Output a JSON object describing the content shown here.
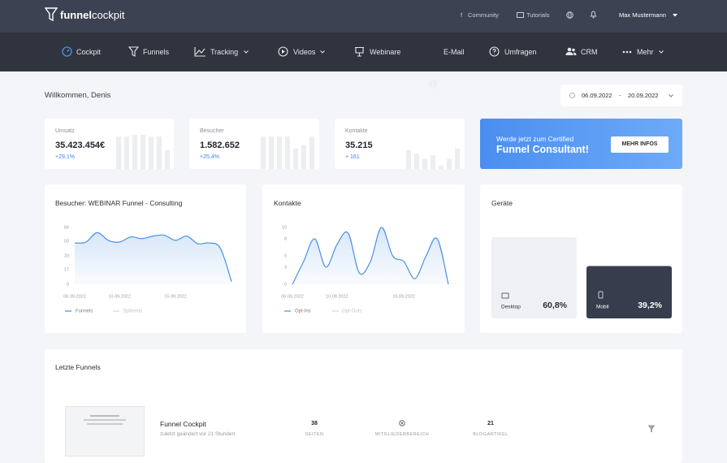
{
  "header": {
    "logo_bold": "funnel",
    "logo_light": "cockpit",
    "links": [
      "Community",
      "Tutorials"
    ],
    "user": "Max Mustermann"
  },
  "nav": [
    "Cockpit",
    "Funnels",
    "Tracking",
    "Videos",
    "Webinare",
    "E-Mail",
    "Umfragen",
    "CRM",
    "Mehr"
  ],
  "welcome": "Willkommen, Denis",
  "date_range": {
    "from": "06.09.2022",
    "separator": "-",
    "to": "20.09.2022"
  },
  "stats": [
    {
      "label": "Umsatz",
      "value": "35.423.454€",
      "change": "+29,1%",
      "sparkline": [
        95,
        95,
        100,
        100,
        95,
        95,
        55
      ]
    },
    {
      "label": "Besucher",
      "value": "1.582.652",
      "change": "+25,4%",
      "sparkline": [
        95,
        95,
        95,
        95,
        60,
        70,
        95
      ]
    },
    {
      "label": "Kontakte",
      "value": "35.215",
      "change": "+ 161",
      "sparkline": [
        55,
        45,
        30,
        40,
        10,
        30,
        60
      ]
    }
  ],
  "promo": {
    "line1": "Werde jetzt zum Certified",
    "line2": "Funnel Consultant!",
    "button": "MEHR INFOS"
  },
  "chart_data": [
    {
      "type": "line",
      "title": "Besucher: WEBINAR Funnel - Consulting",
      "categories": [
        "06.09.2022",
        null,
        null,
        null,
        "10.09.2022",
        null,
        null,
        null,
        null,
        "15.09.2022",
        null,
        null,
        null,
        null,
        null
      ],
      "series": [
        {
          "name": "Funnels",
          "color": "#4a90e2",
          "values": [
            48,
            49,
            60,
            51,
            49,
            55,
            53,
            56,
            57,
            51,
            56,
            47,
            48,
            42,
            3
          ]
        }
      ],
      "inactive_series": [
        {
          "name": "Splittests",
          "color": "#d3d6dc"
        }
      ],
      "ylim": [
        0,
        66
      ],
      "yticks": [
        0,
        17,
        33,
        50,
        66
      ]
    },
    {
      "type": "line",
      "title": "Kontakte",
      "categories": [
        "06.09.2022",
        null,
        null,
        null,
        "10.09.2022",
        null,
        null,
        null,
        null,
        null,
        "16.09.2022",
        null,
        null,
        null,
        null
      ],
      "series": [
        {
          "name": "Opt-Ins",
          "color": "#4a90e2",
          "values": [
            0,
            4,
            8,
            3,
            7,
            9,
            2,
            4,
            10,
            5,
            4,
            1,
            5,
            8,
            0
          ]
        }
      ],
      "inactive_series": [
        {
          "name": "Opt-Outs",
          "color": "#d3d6dc"
        }
      ],
      "ylim": [
        0,
        10
      ],
      "yticks": [
        0,
        3,
        5,
        8,
        10
      ]
    },
    {
      "type": "bar",
      "title": "Geräte",
      "categories": [
        "Desktop",
        "Mobil"
      ],
      "values": [
        60.8,
        39.2
      ],
      "value_labels": [
        "60,8%",
        "39,2%"
      ],
      "colors": [
        "#eff0f3",
        "#383d4d"
      ]
    }
  ],
  "recent": {
    "title": "Letzte Funnels",
    "items": [
      {
        "name": "Funnel Cockpit",
        "modified": "zuletzt geändert vor 21 Stunden",
        "stats": [
          {
            "value": "38",
            "label": "SEITEN"
          },
          {
            "label": "MITGLIEDERBEREICH"
          },
          {
            "value": "21",
            "label": "BLOGARTIKEL"
          }
        ]
      }
    ]
  }
}
